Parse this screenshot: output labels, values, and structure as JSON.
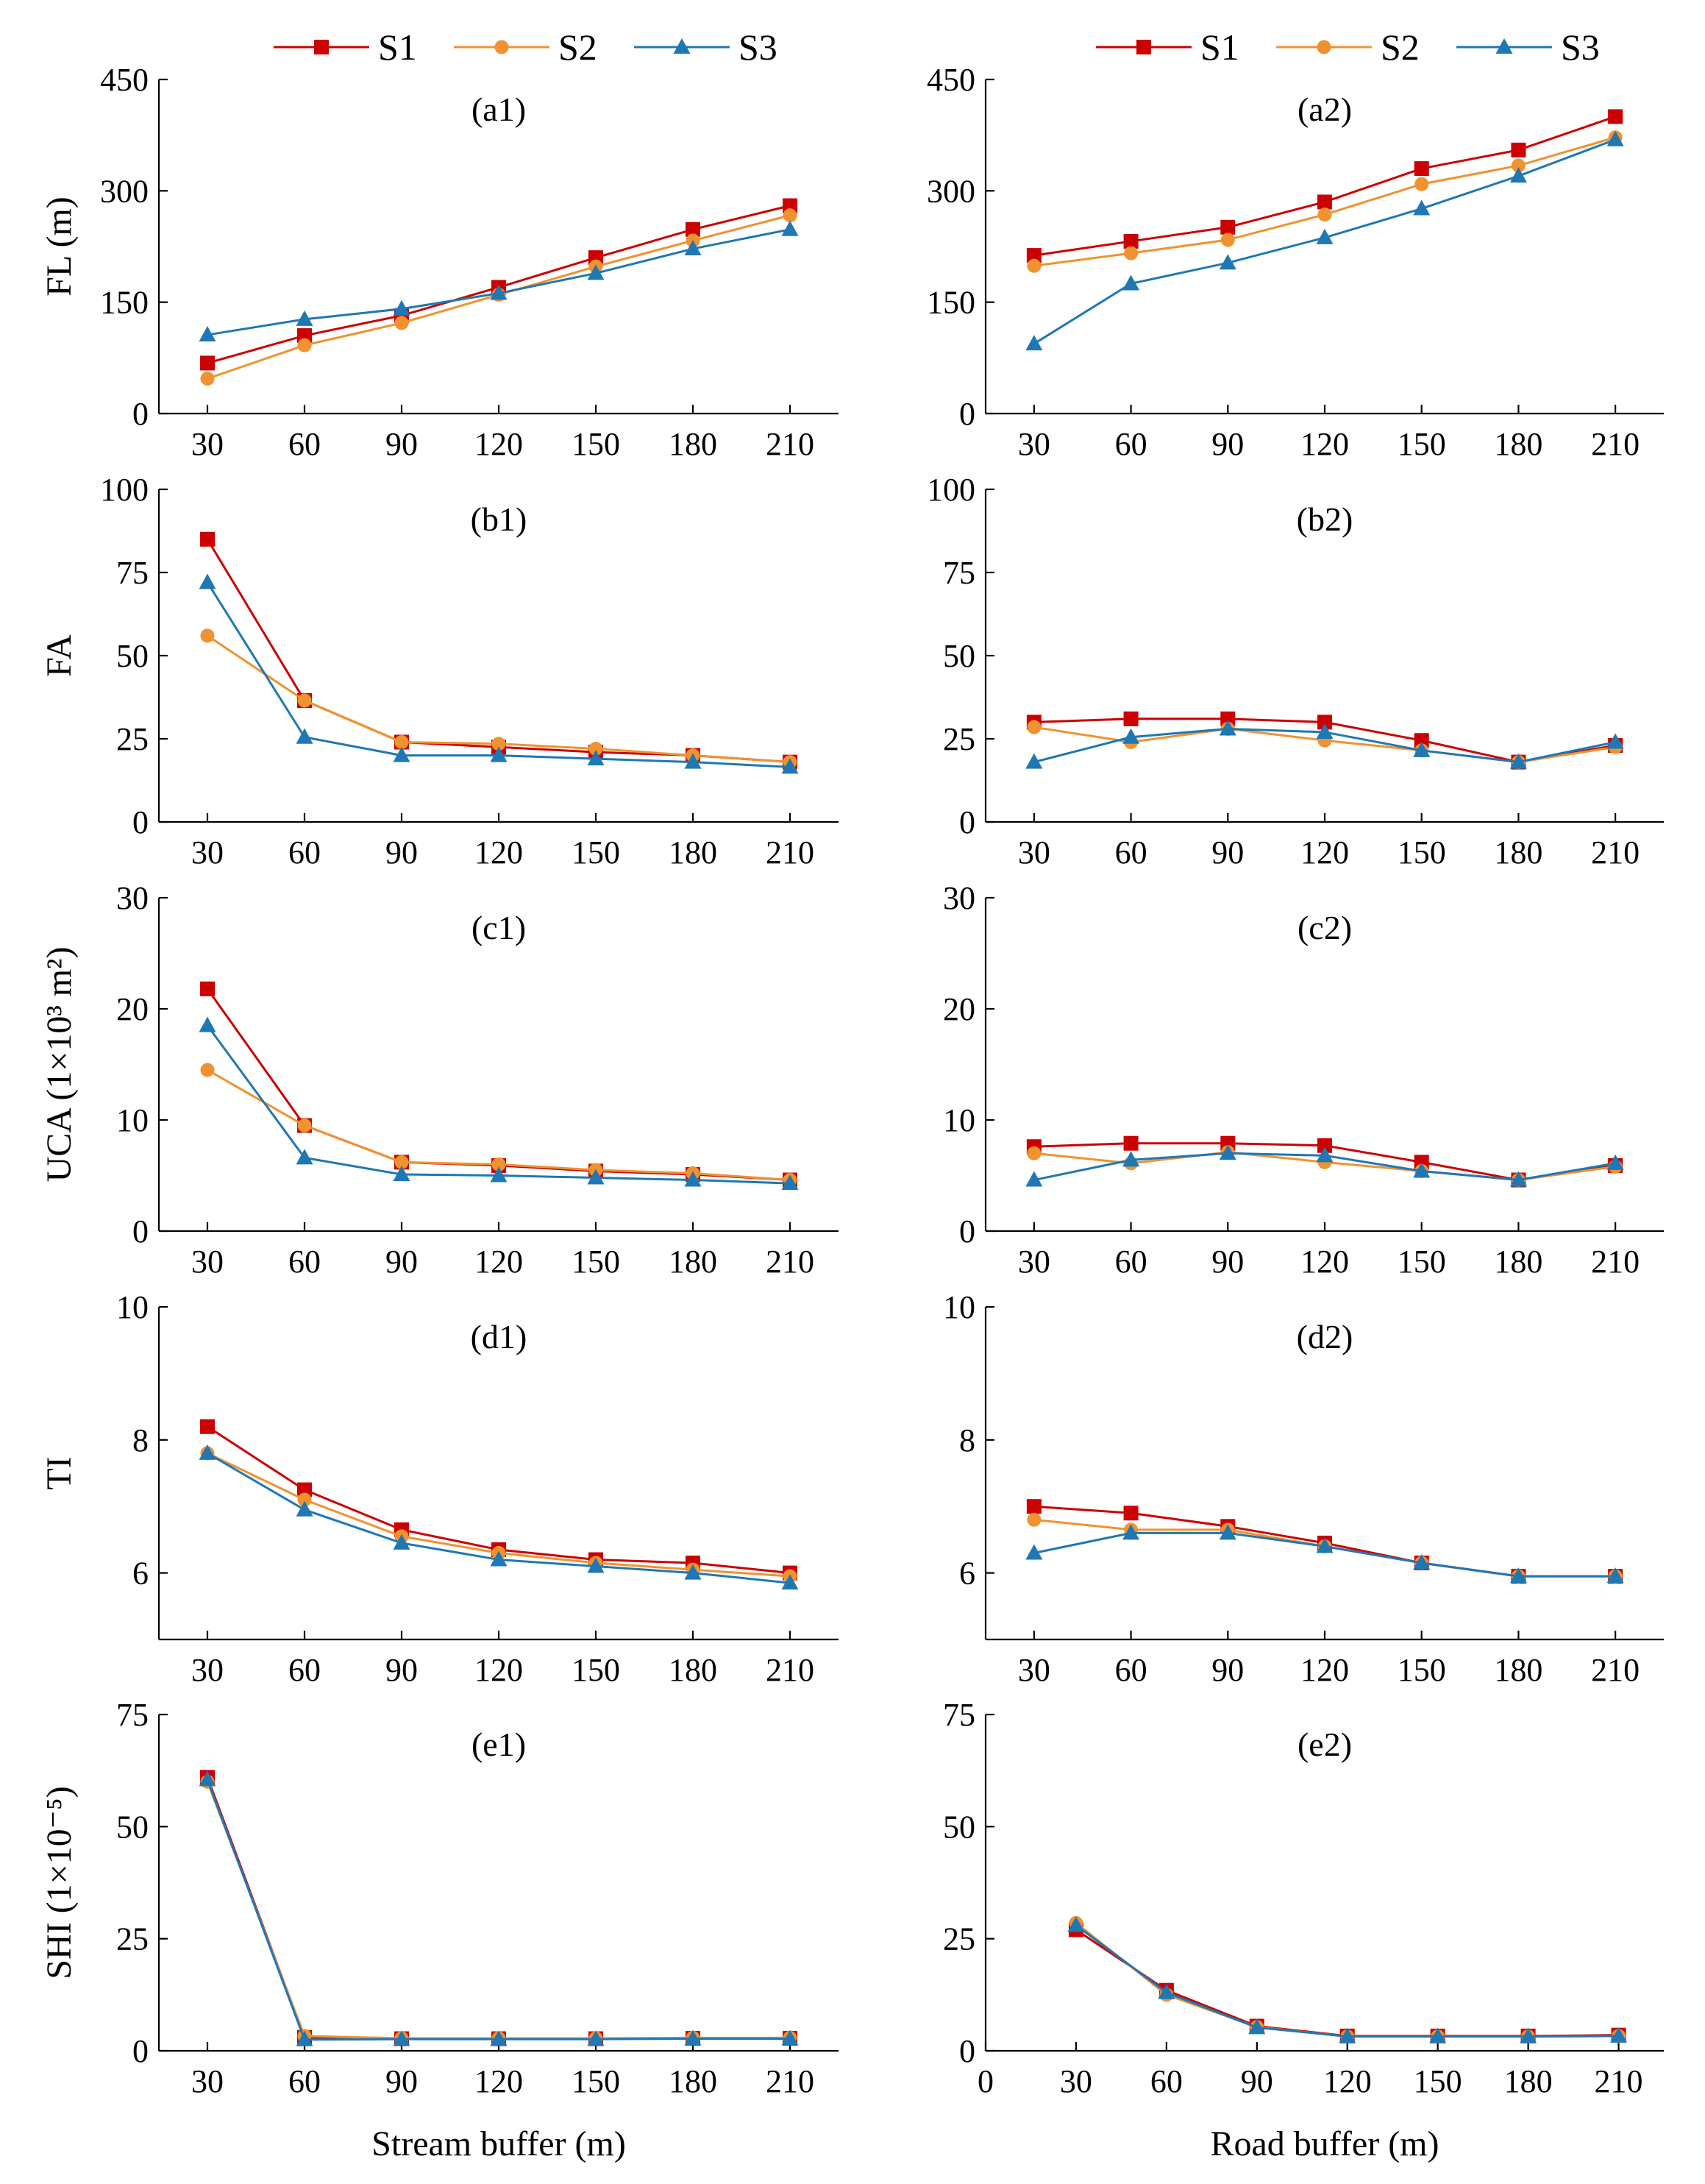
{
  "legend": {
    "series": [
      {
        "name": "S1",
        "color": "#cc0000",
        "marker": "square"
      },
      {
        "name": "S2",
        "color": "#f0922f",
        "marker": "circle"
      },
      {
        "name": "S3",
        "color": "#1f77b4",
        "marker": "triangle"
      }
    ]
  },
  "chart_data": [
    {
      "id": "a1",
      "type": "line",
      "title": "(a1)",
      "xlabel": "",
      "ylabel": "FL (m)",
      "x": [
        30,
        60,
        90,
        120,
        150,
        180,
        210
      ],
      "xlim": [
        15,
        225
      ],
      "ylim": [
        0,
        450
      ],
      "yticks": [
        0,
        150,
        300,
        450
      ],
      "series": [
        {
          "name": "S1",
          "values": [
            68,
            105,
            132,
            170,
            210,
            248,
            280
          ]
        },
        {
          "name": "S2",
          "values": [
            47,
            92,
            122,
            160,
            198,
            233,
            267
          ]
        },
        {
          "name": "S3",
          "values": [
            106,
            127,
            141,
            162,
            189,
            222,
            248
          ]
        }
      ]
    },
    {
      "id": "a2",
      "type": "line",
      "title": "(a2)",
      "xlabel": "",
      "ylabel": "",
      "x": [
        30,
        60,
        90,
        120,
        150,
        180,
        210
      ],
      "xlim": [
        15,
        225
      ],
      "ylim": [
        0,
        450
      ],
      "yticks": [
        0,
        150,
        300,
        450
      ],
      "series": [
        {
          "name": "S1",
          "values": [
            213,
            232,
            251,
            285,
            330,
            355,
            400
          ]
        },
        {
          "name": "S2",
          "values": [
            199,
            216,
            234,
            268,
            309,
            334,
            372
          ]
        },
        {
          "name": "S3",
          "values": [
            94,
            175,
            203,
            237,
            276,
            320,
            369
          ]
        }
      ]
    },
    {
      "id": "b1",
      "type": "line",
      "title": "(b1)",
      "xlabel": "",
      "ylabel": "FA",
      "x": [
        30,
        60,
        90,
        120,
        150,
        180,
        210
      ],
      "xlim": [
        15,
        225
      ],
      "ylim": [
        0,
        100
      ],
      "yticks": [
        0,
        25,
        50,
        75,
        100
      ],
      "series": [
        {
          "name": "S1",
          "values": [
            85,
            36.5,
            24,
            22.5,
            21,
            20,
            18
          ]
        },
        {
          "name": "S2",
          "values": [
            56,
            36.5,
            24,
            23.5,
            22,
            20,
            18
          ]
        },
        {
          "name": "S3",
          "values": [
            72,
            25.5,
            20,
            20,
            19,
            18,
            16.5
          ]
        }
      ]
    },
    {
      "id": "b2",
      "type": "line",
      "title": "(b2)",
      "xlabel": "",
      "ylabel": "",
      "x": [
        30,
        60,
        90,
        120,
        150,
        180,
        210
      ],
      "xlim": [
        15,
        225
      ],
      "ylim": [
        0,
        100
      ],
      "yticks": [
        0,
        25,
        50,
        75,
        100
      ],
      "series": [
        {
          "name": "S1",
          "values": [
            30,
            31,
            31,
            30,
            24.5,
            18,
            23
          ]
        },
        {
          "name": "S2",
          "values": [
            28.5,
            24,
            28,
            24.5,
            21.5,
            18,
            22.5
          ]
        },
        {
          "name": "S3",
          "values": [
            18,
            25.5,
            28,
            27,
            21.5,
            18,
            24
          ]
        }
      ]
    },
    {
      "id": "c1",
      "type": "line",
      "title": "(c1)",
      "xlabel": "",
      "ylabel": "UCA (1×10³ m²)",
      "x": [
        30,
        60,
        90,
        120,
        150,
        180,
        210
      ],
      "xlim": [
        15,
        225
      ],
      "ylim": [
        0,
        30
      ],
      "yticks": [
        0,
        10,
        20,
        30
      ],
      "series": [
        {
          "name": "S1",
          "values": [
            21.8,
            9.5,
            6.2,
            5.9,
            5.4,
            5.1,
            4.6
          ]
        },
        {
          "name": "S2",
          "values": [
            14.5,
            9.5,
            6.2,
            6.0,
            5.5,
            5.2,
            4.6
          ]
        },
        {
          "name": "S3",
          "values": [
            18.5,
            6.6,
            5.1,
            5.0,
            4.8,
            4.6,
            4.3
          ]
        }
      ]
    },
    {
      "id": "c2",
      "type": "line",
      "title": "(c2)",
      "xlabel": "",
      "ylabel": "",
      "x": [
        30,
        60,
        90,
        120,
        150,
        180,
        210
      ],
      "xlim": [
        15,
        225
      ],
      "ylim": [
        0,
        30
      ],
      "yticks": [
        0,
        10,
        20,
        30
      ],
      "series": [
        {
          "name": "S1",
          "values": [
            7.6,
            7.9,
            7.9,
            7.7,
            6.2,
            4.6,
            5.9
          ]
        },
        {
          "name": "S2",
          "values": [
            7.0,
            6.1,
            7.1,
            6.2,
            5.4,
            4.6,
            5.8
          ]
        },
        {
          "name": "S3",
          "values": [
            4.6,
            6.4,
            7.0,
            6.8,
            5.4,
            4.6,
            6.1
          ]
        }
      ]
    },
    {
      "id": "d1",
      "type": "line",
      "title": "(d1)",
      "xlabel": "",
      "ylabel": "TI",
      "x": [
        30,
        60,
        90,
        120,
        150,
        180,
        210
      ],
      "xlim": [
        15,
        225
      ],
      "ylim": [
        5,
        10
      ],
      "yticks": [
        6,
        8,
        10
      ],
      "series": [
        {
          "name": "S1",
          "values": [
            8.2,
            7.25,
            6.65,
            6.35,
            6.2,
            6.15,
            6.0
          ]
        },
        {
          "name": "S2",
          "values": [
            7.8,
            7.1,
            6.55,
            6.3,
            6.15,
            6.05,
            5.95
          ]
        },
        {
          "name": "S3",
          "values": [
            7.8,
            6.95,
            6.45,
            6.2,
            6.1,
            6.0,
            5.85
          ]
        }
      ]
    },
    {
      "id": "d2",
      "type": "line",
      "title": "(d2)",
      "xlabel": "",
      "ylabel": "",
      "x": [
        30,
        60,
        90,
        120,
        150,
        180,
        210
      ],
      "xlim": [
        15,
        225
      ],
      "ylim": [
        5,
        10
      ],
      "yticks": [
        6,
        8,
        10
      ],
      "series": [
        {
          "name": "S1",
          "values": [
            7.0,
            6.9,
            6.7,
            6.45,
            6.15,
            5.95,
            5.95
          ]
        },
        {
          "name": "S2",
          "values": [
            6.8,
            6.65,
            6.65,
            6.4,
            6.15,
            5.95,
            5.95
          ]
        },
        {
          "name": "S3",
          "values": [
            6.3,
            6.6,
            6.6,
            6.4,
            6.15,
            5.95,
            5.95
          ]
        }
      ]
    },
    {
      "id": "e1",
      "type": "line",
      "title": "(e1)",
      "xlabel": "Stream buffer (m)",
      "ylabel": "SHI (1×10⁻⁵)",
      "x": [
        30,
        60,
        90,
        120,
        150,
        180,
        210
      ],
      "xlim": [
        15,
        225
      ],
      "ylim": [
        0,
        75
      ],
      "yticks": [
        0,
        25,
        50,
        75
      ],
      "xticks": [
        30,
        60,
        90,
        120,
        150,
        180,
        210
      ],
      "series": [
        {
          "name": "S1",
          "values": [
            61,
            3,
            2.7,
            2.7,
            2.7,
            2.8,
            2.8
          ]
        },
        {
          "name": "S2",
          "values": [
            60,
            3.3,
            2.8,
            2.8,
            2.8,
            2.9,
            2.9
          ]
        },
        {
          "name": "S3",
          "values": [
            60.5,
            2.5,
            2.6,
            2.6,
            2.6,
            2.7,
            2.7
          ]
        }
      ]
    },
    {
      "id": "e2",
      "type": "line",
      "title": "(e2)",
      "xlabel": "Road buffer (m)",
      "ylabel": "",
      "x": [
        30,
        60,
        90,
        120,
        150,
        180,
        210
      ],
      "xlim": [
        0,
        225
      ],
      "ylim": [
        0,
        75
      ],
      "yticks": [
        0,
        25,
        50,
        75
      ],
      "xticks": [
        0,
        30,
        60,
        90,
        120,
        150,
        180,
        210
      ],
      "series": [
        {
          "name": "S1",
          "values": [
            27,
            13.5,
            5.5,
            3.3,
            3.3,
            3.3,
            3.5
          ]
        },
        {
          "name": "S2",
          "values": [
            28.5,
            12.5,
            5.3,
            3.2,
            3.2,
            3.2,
            3.3
          ]
        },
        {
          "name": "S3",
          "values": [
            28,
            13,
            5.2,
            3.2,
            3.2,
            3.2,
            3.3
          ]
        }
      ]
    }
  ]
}
